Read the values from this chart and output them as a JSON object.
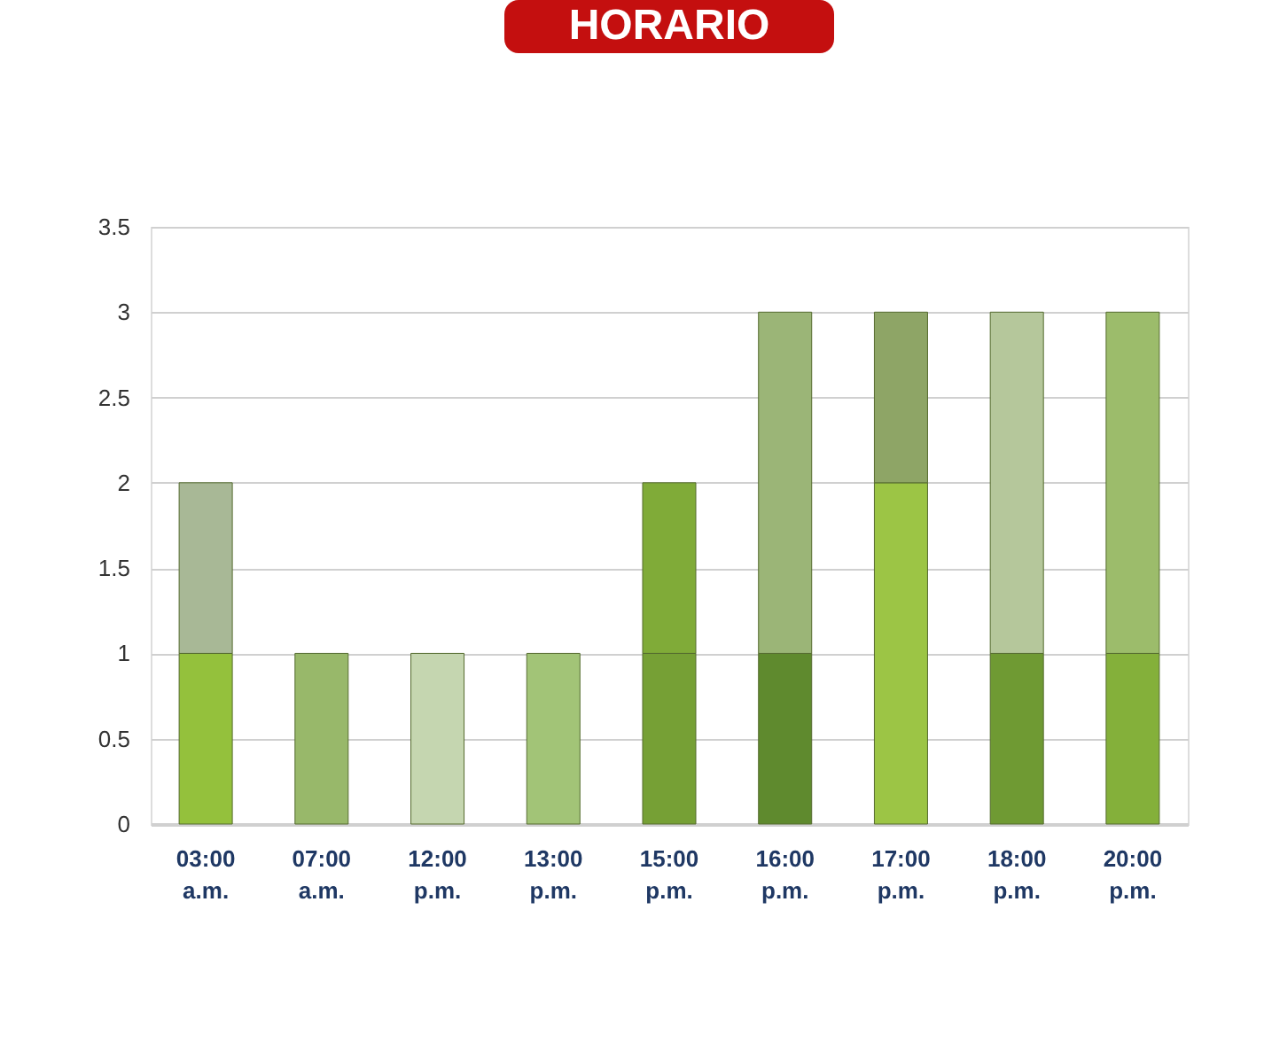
{
  "chart_data": {
    "type": "bar",
    "title": "HORARIO",
    "stacked": true,
    "categories": [
      "03:00 a.m.",
      "07:00 a.m.",
      "12:00 p.m.",
      "13:00 p.m.",
      "15:00 p.m.",
      "16:00 p.m.",
      "17:00 p.m.",
      "18:00 p.m.",
      "20:00 p.m."
    ],
    "series": [
      {
        "colors": [
          "#94c13c",
          "#98b86a",
          "#c5d6b0",
          "#a2c477",
          "#76a035",
          "#5f8a2e",
          "#9cc545",
          "#6f9a33",
          "#84b03a"
        ],
        "values": [
          1,
          1,
          1,
          1,
          1,
          1,
          2,
          1,
          1
        ]
      },
      {
        "colors": [
          "#a8b896",
          null,
          null,
          null,
          "#80ab38",
          "#9bb577",
          "#8ea566",
          "#b5c79b",
          "#9cbc6b"
        ],
        "values": [
          1,
          null,
          null,
          null,
          1,
          2,
          1,
          2,
          2
        ]
      }
    ],
    "ylim": [
      0,
      3.5
    ],
    "yticks": [
      0,
      0.5,
      1,
      1.5,
      2,
      2.5,
      3,
      3.5
    ],
    "grid": "y"
  }
}
